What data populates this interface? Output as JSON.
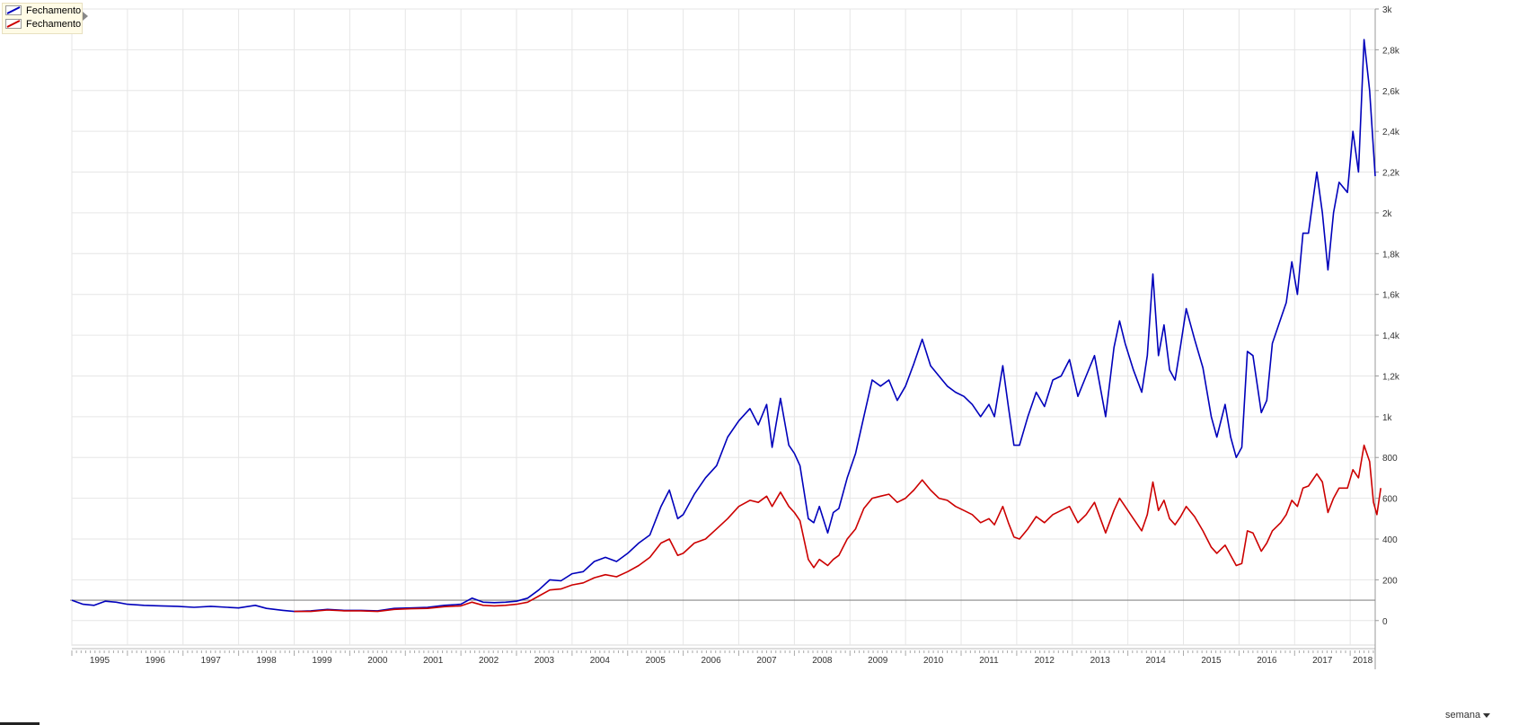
{
  "chart_data": {
    "type": "line",
    "title": "",
    "xlabel": "",
    "ylabel": "",
    "x_ticks": [
      "1995",
      "1996",
      "1997",
      "1998",
      "1999",
      "2000",
      "2001",
      "2002",
      "2003",
      "2004",
      "2005",
      "2006",
      "2007",
      "2008",
      "2009",
      "2010",
      "2011",
      "2012",
      "2013",
      "2014",
      "2015",
      "2016",
      "2017",
      "2018"
    ],
    "y_ticks": [
      {
        "value": 0,
        "label": "0"
      },
      {
        "value": 200,
        "label": "200"
      },
      {
        "value": 400,
        "label": "400"
      },
      {
        "value": 600,
        "label": "600"
      },
      {
        "value": 800,
        "label": "800"
      },
      {
        "value": 1000,
        "label": "1k"
      },
      {
        "value": 1200,
        "label": "1,2k"
      },
      {
        "value": 1400,
        "label": "1,4k"
      },
      {
        "value": 1600,
        "label": "1,6k"
      },
      {
        "value": 1800,
        "label": "1,8k"
      },
      {
        "value": 2000,
        "label": "2k"
      },
      {
        "value": 2200,
        "label": "2,2k"
      },
      {
        "value": 2400,
        "label": "2,4k"
      },
      {
        "value": 2600,
        "label": "2,6k"
      },
      {
        "value": 2800,
        "label": "2,8k"
      },
      {
        "value": 3000,
        "label": "3k"
      }
    ],
    "xlim": [
      1995.0,
      2018.45
    ],
    "ylim": [
      -120,
      3000
    ],
    "reference_line": 100,
    "grid": true,
    "legend_position": "top-left",
    "series": [
      {
        "name": "Fechamento",
        "color": "#0000bb",
        "points": [
          [
            1995.0,
            100
          ],
          [
            1995.2,
            80
          ],
          [
            1995.4,
            75
          ],
          [
            1995.6,
            95
          ],
          [
            1995.8,
            90
          ],
          [
            1996.0,
            80
          ],
          [
            1996.3,
            75
          ],
          [
            1996.6,
            72
          ],
          [
            1996.9,
            70
          ],
          [
            1997.2,
            65
          ],
          [
            1997.5,
            70
          ],
          [
            1997.8,
            65
          ],
          [
            1998.0,
            62
          ],
          [
            1998.3,
            75
          ],
          [
            1998.5,
            60
          ],
          [
            1998.8,
            50
          ],
          [
            1999.0,
            45
          ],
          [
            1999.3,
            48
          ],
          [
            1999.6,
            55
          ],
          [
            1999.9,
            50
          ],
          [
            2000.2,
            50
          ],
          [
            2000.5,
            48
          ],
          [
            2000.8,
            60
          ],
          [
            2001.1,
            62
          ],
          [
            2001.4,
            65
          ],
          [
            2001.7,
            75
          ],
          [
            2002.0,
            80
          ],
          [
            2002.2,
            110
          ],
          [
            2002.4,
            90
          ],
          [
            2002.6,
            88
          ],
          [
            2002.8,
            90
          ],
          [
            2003.0,
            95
          ],
          [
            2003.2,
            110
          ],
          [
            2003.4,
            150
          ],
          [
            2003.6,
            200
          ],
          [
            2003.8,
            195
          ],
          [
            2004.0,
            230
          ],
          [
            2004.2,
            240
          ],
          [
            2004.4,
            290
          ],
          [
            2004.6,
            310
          ],
          [
            2004.8,
            290
          ],
          [
            2005.0,
            330
          ],
          [
            2005.2,
            380
          ],
          [
            2005.4,
            420
          ],
          [
            2005.6,
            560
          ],
          [
            2005.75,
            640
          ],
          [
            2005.9,
            500
          ],
          [
            2006.0,
            520
          ],
          [
            2006.2,
            620
          ],
          [
            2006.4,
            700
          ],
          [
            2006.6,
            760
          ],
          [
            2006.8,
            900
          ],
          [
            2007.0,
            980
          ],
          [
            2007.2,
            1040
          ],
          [
            2007.35,
            960
          ],
          [
            2007.5,
            1060
          ],
          [
            2007.6,
            850
          ],
          [
            2007.75,
            1090
          ],
          [
            2007.9,
            860
          ],
          [
            2008.0,
            820
          ],
          [
            2008.1,
            760
          ],
          [
            2008.25,
            500
          ],
          [
            2008.35,
            480
          ],
          [
            2008.45,
            560
          ],
          [
            2008.6,
            430
          ],
          [
            2008.7,
            530
          ],
          [
            2008.8,
            550
          ],
          [
            2008.95,
            700
          ],
          [
            2009.1,
            820
          ],
          [
            2009.25,
            1000
          ],
          [
            2009.4,
            1180
          ],
          [
            2009.55,
            1150
          ],
          [
            2009.7,
            1180
          ],
          [
            2009.85,
            1080
          ],
          [
            2010.0,
            1150
          ],
          [
            2010.15,
            1260
          ],
          [
            2010.3,
            1380
          ],
          [
            2010.45,
            1250
          ],
          [
            2010.6,
            1200
          ],
          [
            2010.75,
            1150
          ],
          [
            2010.9,
            1120
          ],
          [
            2011.05,
            1100
          ],
          [
            2011.2,
            1060
          ],
          [
            2011.35,
            1000
          ],
          [
            2011.5,
            1060
          ],
          [
            2011.6,
            1000
          ],
          [
            2011.75,
            1250
          ],
          [
            2011.85,
            1050
          ],
          [
            2011.95,
            860
          ],
          [
            2012.05,
            860
          ],
          [
            2012.2,
            1000
          ],
          [
            2012.35,
            1120
          ],
          [
            2012.5,
            1050
          ],
          [
            2012.65,
            1180
          ],
          [
            2012.8,
            1200
          ],
          [
            2012.95,
            1280
          ],
          [
            2013.1,
            1100
          ],
          [
            2013.25,
            1200
          ],
          [
            2013.4,
            1300
          ],
          [
            2013.6,
            1000
          ],
          [
            2013.75,
            1340
          ],
          [
            2013.85,
            1470
          ],
          [
            2013.95,
            1360
          ],
          [
            2014.1,
            1230
          ],
          [
            2014.25,
            1120
          ],
          [
            2014.35,
            1300
          ],
          [
            2014.45,
            1700
          ],
          [
            2014.55,
            1300
          ],
          [
            2014.65,
            1450
          ],
          [
            2014.75,
            1230
          ],
          [
            2014.85,
            1180
          ],
          [
            2014.95,
            1350
          ],
          [
            2015.05,
            1530
          ],
          [
            2015.2,
            1380
          ],
          [
            2015.35,
            1240
          ],
          [
            2015.5,
            1000
          ],
          [
            2015.6,
            900
          ],
          [
            2015.75,
            1060
          ],
          [
            2015.85,
            900
          ],
          [
            2015.95,
            800
          ],
          [
            2016.05,
            850
          ],
          [
            2016.15,
            1320
          ],
          [
            2016.25,
            1300
          ],
          [
            2016.4,
            1020
          ],
          [
            2016.5,
            1080
          ],
          [
            2016.6,
            1360
          ],
          [
            2016.75,
            1480
          ],
          [
            2016.85,
            1560
          ],
          [
            2016.95,
            1760
          ],
          [
            2017.05,
            1600
          ],
          [
            2017.15,
            1900
          ],
          [
            2017.25,
            1900
          ],
          [
            2017.4,
            2200
          ],
          [
            2017.5,
            2000
          ],
          [
            2017.6,
            1720
          ],
          [
            2017.7,
            2000
          ],
          [
            2017.8,
            2150
          ],
          [
            2017.95,
            2100
          ],
          [
            2018.05,
            2400
          ],
          [
            2018.15,
            2200
          ],
          [
            2018.25,
            2850
          ],
          [
            2018.35,
            2600
          ],
          [
            2018.45,
            2180
          ]
        ]
      },
      {
        "name": "Fechamento",
        "color": "#cc0000",
        "points": [
          [
            1999.0,
            45
          ],
          [
            1999.3,
            45
          ],
          [
            1999.6,
            52
          ],
          [
            1999.9,
            48
          ],
          [
            2000.2,
            48
          ],
          [
            2000.5,
            45
          ],
          [
            2000.8,
            55
          ],
          [
            2001.1,
            58
          ],
          [
            2001.4,
            60
          ],
          [
            2001.7,
            68
          ],
          [
            2002.0,
            72
          ],
          [
            2002.2,
            90
          ],
          [
            2002.4,
            75
          ],
          [
            2002.6,
            72
          ],
          [
            2002.8,
            75
          ],
          [
            2003.0,
            80
          ],
          [
            2003.2,
            90
          ],
          [
            2003.4,
            120
          ],
          [
            2003.6,
            150
          ],
          [
            2003.8,
            155
          ],
          [
            2004.0,
            175
          ],
          [
            2004.2,
            185
          ],
          [
            2004.4,
            210
          ],
          [
            2004.6,
            225
          ],
          [
            2004.8,
            215
          ],
          [
            2005.0,
            240
          ],
          [
            2005.2,
            270
          ],
          [
            2005.4,
            310
          ],
          [
            2005.6,
            380
          ],
          [
            2005.75,
            400
          ],
          [
            2005.9,
            320
          ],
          [
            2006.0,
            330
          ],
          [
            2006.2,
            380
          ],
          [
            2006.4,
            400
          ],
          [
            2006.6,
            450
          ],
          [
            2006.8,
            500
          ],
          [
            2007.0,
            560
          ],
          [
            2007.2,
            590
          ],
          [
            2007.35,
            580
          ],
          [
            2007.5,
            610
          ],
          [
            2007.6,
            560
          ],
          [
            2007.75,
            630
          ],
          [
            2007.9,
            560
          ],
          [
            2008.0,
            530
          ],
          [
            2008.1,
            490
          ],
          [
            2008.25,
            300
          ],
          [
            2008.35,
            260
          ],
          [
            2008.45,
            300
          ],
          [
            2008.6,
            270
          ],
          [
            2008.7,
            300
          ],
          [
            2008.8,
            320
          ],
          [
            2008.95,
            400
          ],
          [
            2009.1,
            450
          ],
          [
            2009.25,
            550
          ],
          [
            2009.4,
            600
          ],
          [
            2009.55,
            610
          ],
          [
            2009.7,
            620
          ],
          [
            2009.85,
            580
          ],
          [
            2010.0,
            600
          ],
          [
            2010.15,
            640
          ],
          [
            2010.3,
            690
          ],
          [
            2010.45,
            640
          ],
          [
            2010.6,
            600
          ],
          [
            2010.75,
            590
          ],
          [
            2010.9,
            560
          ],
          [
            2011.05,
            540
          ],
          [
            2011.2,
            520
          ],
          [
            2011.35,
            480
          ],
          [
            2011.5,
            500
          ],
          [
            2011.6,
            470
          ],
          [
            2011.75,
            560
          ],
          [
            2011.85,
            480
          ],
          [
            2011.95,
            410
          ],
          [
            2012.05,
            400
          ],
          [
            2012.2,
            450
          ],
          [
            2012.35,
            510
          ],
          [
            2012.5,
            480
          ],
          [
            2012.65,
            520
          ],
          [
            2012.8,
            540
          ],
          [
            2012.95,
            560
          ],
          [
            2013.1,
            480
          ],
          [
            2013.25,
            520
          ],
          [
            2013.4,
            580
          ],
          [
            2013.6,
            430
          ],
          [
            2013.75,
            540
          ],
          [
            2013.85,
            600
          ],
          [
            2013.95,
            560
          ],
          [
            2014.1,
            500
          ],
          [
            2014.25,
            440
          ],
          [
            2014.35,
            520
          ],
          [
            2014.45,
            680
          ],
          [
            2014.55,
            540
          ],
          [
            2014.65,
            590
          ],
          [
            2014.75,
            500
          ],
          [
            2014.85,
            470
          ],
          [
            2014.95,
            510
          ],
          [
            2015.05,
            560
          ],
          [
            2015.2,
            510
          ],
          [
            2015.35,
            440
          ],
          [
            2015.5,
            360
          ],
          [
            2015.6,
            330
          ],
          [
            2015.75,
            370
          ],
          [
            2015.85,
            320
          ],
          [
            2015.95,
            270
          ],
          [
            2016.05,
            280
          ],
          [
            2016.15,
            440
          ],
          [
            2016.25,
            430
          ],
          [
            2016.4,
            340
          ],
          [
            2016.5,
            380
          ],
          [
            2016.6,
            440
          ],
          [
            2016.75,
            480
          ],
          [
            2016.85,
            520
          ],
          [
            2016.95,
            590
          ],
          [
            2017.05,
            560
          ],
          [
            2017.15,
            650
          ],
          [
            2017.25,
            660
          ],
          [
            2017.4,
            720
          ],
          [
            2017.5,
            680
          ],
          [
            2017.6,
            530
          ],
          [
            2017.7,
            600
          ],
          [
            2017.8,
            650
          ],
          [
            2017.95,
            650
          ],
          [
            2018.05,
            740
          ],
          [
            2018.15,
            700
          ],
          [
            2018.25,
            860
          ],
          [
            2018.35,
            780
          ],
          [
            2018.42,
            580
          ],
          [
            2018.48,
            520
          ],
          [
            2018.55,
            650
          ]
        ]
      }
    ]
  },
  "legend": {
    "items": [
      {
        "label": "Fechamento",
        "color": "#0000bb"
      },
      {
        "label": "Fechamento",
        "color": "#cc0000"
      }
    ]
  },
  "controls": {
    "period_label": "semana"
  }
}
